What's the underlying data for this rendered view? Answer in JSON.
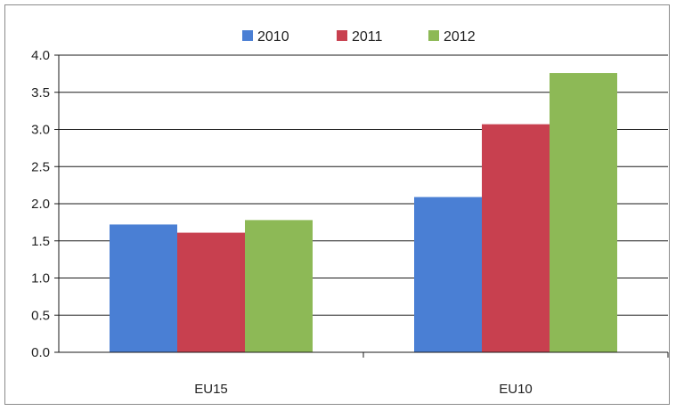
{
  "chart_data": {
    "type": "bar",
    "categories": [
      "EU15",
      "EU10"
    ],
    "series": [
      {
        "name": "2010",
        "color": "#4a7fd4",
        "values": [
          1.72,
          2.09
        ]
      },
      {
        "name": "2011",
        "color": "#c8404f",
        "values": [
          1.61,
          3.07
        ]
      },
      {
        "name": "2012",
        "color": "#8db956",
        "values": [
          1.78,
          3.76
        ]
      }
    ],
    "ylim": [
      0,
      4.0
    ],
    "yticks": [
      "0.0",
      "0.5",
      "1.0",
      "1.5",
      "2.0",
      "2.5",
      "3.0",
      "3.5",
      "4.0"
    ],
    "grid": true,
    "legend_position": "top"
  }
}
